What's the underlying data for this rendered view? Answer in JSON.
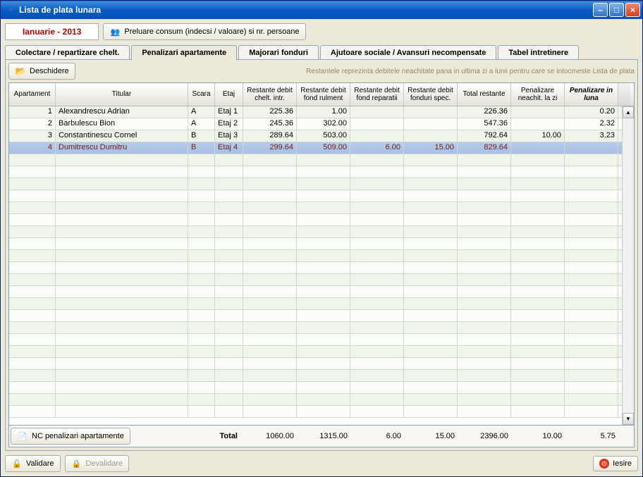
{
  "window": {
    "title": "Lista de plata lunara"
  },
  "top": {
    "month": "Ianuarie - 2013",
    "preluare_btn": "Preluare consum (indecsi / valoare) si nr. persoane"
  },
  "tabs": {
    "t0": "Colectare / repartizare chelt.",
    "t1": "Penalizari apartamente",
    "t2": "Majorari fonduri",
    "t3": "Ajutoare sociale / Avansuri necompensate",
    "t4": "Tabel intretinere",
    "active_index": 1
  },
  "sub": {
    "deschidere": "Deschidere",
    "note": "Restantele reprezinta debitele neachitate pana in ultima zi a lunii pentru care se intocmeste Lista de plata"
  },
  "columns": {
    "c0": "Apartament",
    "c1": "Titular",
    "c2": "Scara",
    "c3": "Etaj",
    "c4": "Restante debit chelt. intr.",
    "c5": "Restante debit fond rulment",
    "c6": "Restante debit fond reparatii",
    "c7": "Restante debit fonduri spec.",
    "c8": "Total restante",
    "c9": "Penalizare neachit. la zi",
    "c10": "Penalizare in luna"
  },
  "rows": [
    {
      "ap": "1",
      "titular": "Alexandrescu Adrian",
      "scara": "A",
      "etaj": "Etaj 1",
      "r1": "225.36",
      "r2": "1.00",
      "r3": "",
      "r4": "",
      "tot": "226.36",
      "pen": "",
      "plu": "0.20",
      "sel": false
    },
    {
      "ap": "2",
      "titular": "Barbulescu Bion",
      "scara": "A",
      "etaj": "Etaj 2",
      "r1": "245.36",
      "r2": "302.00",
      "r3": "",
      "r4": "",
      "tot": "547.36",
      "pen": "",
      "plu": "2.32",
      "sel": false
    },
    {
      "ap": "3",
      "titular": "Constantinescu Cornel",
      "scara": "B",
      "etaj": "Etaj 3",
      "r1": "289.64",
      "r2": "503.00",
      "r3": "",
      "r4": "",
      "tot": "792.64",
      "pen": "10.00",
      "plu": "3.23",
      "sel": false
    },
    {
      "ap": "4",
      "titular": "Dumitrescu Dumitru",
      "scara": "B",
      "etaj": "Etaj 4",
      "r1": "299.64",
      "r2": "509.00",
      "r3": "6.00",
      "r4": "15.00",
      "tot": "829.64",
      "pen": "",
      "plu": "",
      "sel": true
    }
  ],
  "footer": {
    "nc_btn": "NC penalizari apartamente",
    "total_label": "Total",
    "f1": "1060.00",
    "f2": "1315.00",
    "f3": "6.00",
    "f4": "15.00",
    "f5": "2396.00",
    "f6": "10.00",
    "f7": "5.75"
  },
  "bottom": {
    "validare": "Validare",
    "devalidare": "Devalidare",
    "iesire": "Iesire"
  },
  "style": {
    "selected_row_bg": "#a7c0e5",
    "even_row_bg": "#f0f5ea",
    "odd_row_bg": "#fafdf7",
    "header_bg": "#e8e6da",
    "note_color": "#a08060"
  }
}
